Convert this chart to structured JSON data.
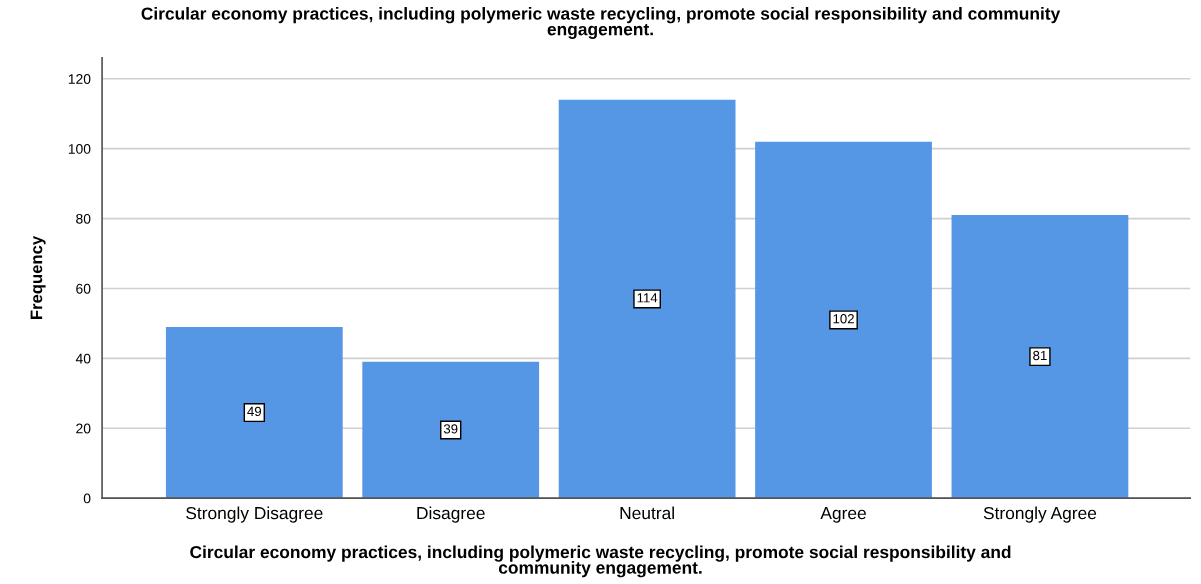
{
  "chart_data": {
    "type": "bar",
    "title": "Circular economy practices, including polymeric waste recycling, promote social responsibility and community engagement.",
    "xlabel": "Circular economy practices, including polymeric waste recycling, promote social responsibility and community engagement.",
    "ylabel": "Frequency",
    "categories": [
      "Strongly Disagree",
      "Disagree",
      "Neutral",
      "Agree",
      "Strongly Agree"
    ],
    "values": [
      49,
      39,
      114,
      102,
      81
    ],
    "color": "#5596e5",
    "ylim": [
      0,
      126
    ],
    "yticks": [
      0,
      20,
      40,
      60,
      80,
      100,
      120
    ],
    "grid": "y",
    "data_labels": true
  }
}
